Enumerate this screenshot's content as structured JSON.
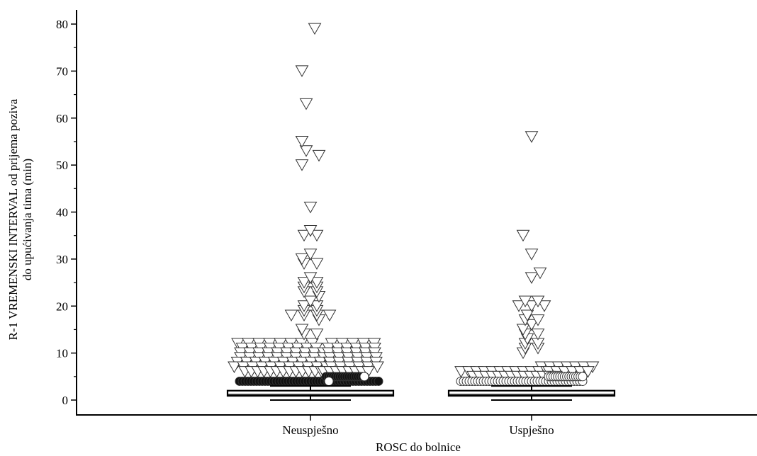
{
  "chart_data": {
    "type": "scatter",
    "variant": "beeswarm-with-boxplot",
    "title": "",
    "xlabel": "ROSC do bolnice",
    "ylabel_lines": [
      "R-1 VREMENSKI INTERVAL od prijema poziva",
      "do upućivanja tima (min)"
    ],
    "ylim": [
      -3,
      83
    ],
    "yticks": [
      0,
      10,
      20,
      30,
      40,
      50,
      60,
      70,
      80
    ],
    "grid": false,
    "legend": "none",
    "categories": [
      "Neuspješno",
      "Uspješno"
    ],
    "marker_colors": {
      "outline": "#333333",
      "fill": "#ffffff",
      "dark_fill": "#111111"
    },
    "groups": [
      {
        "category": "Neuspješno",
        "box": {
          "q1": 0.9,
          "median": 1.2,
          "q3": 2.0,
          "whisker_low": 0,
          "whisker_high": 3
        },
        "circle_values": [
          4,
          5
        ],
        "outliers": [
          79,
          70,
          63,
          55,
          53,
          52,
          50,
          41,
          36,
          35,
          35,
          31,
          30,
          29,
          29,
          26,
          25,
          25,
          24,
          24,
          23,
          23,
          22,
          21,
          20,
          20,
          19,
          19,
          18,
          18,
          18,
          18,
          17,
          15,
          14,
          14
        ]
      },
      {
        "category": "Uspješno",
        "box": {
          "q1": 0.9,
          "median": 1.2,
          "q3": 2.0,
          "whisker_low": 0,
          "whisker_high": 3
        },
        "circle_values": [
          4,
          5
        ],
        "outliers": [
          56,
          35,
          31,
          27,
          26,
          21,
          21,
          20,
          20,
          20,
          18,
          17,
          17,
          16,
          15,
          14,
          14,
          13,
          12,
          12,
          11,
          11,
          10
        ]
      }
    ]
  }
}
